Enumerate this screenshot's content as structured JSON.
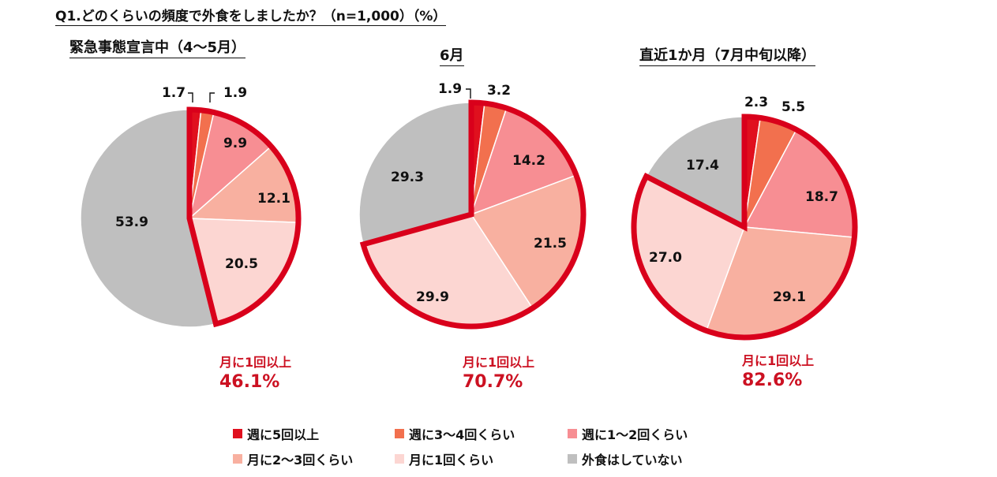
{
  "title": "Q1.どのくらいの頻度で外食をしましたか？（n=1,000）（%）",
  "colors": {
    "週に5回以上": "#e0101e",
    "週に3〜4回くらい": "#f2704e",
    "週に1〜2回くらい": "#f78e93",
    "月に2〜3回くらい": "#f8b0a0",
    "月に1回くらい": "#fcd6d2",
    "外食はしていない": "#bfbfbf",
    "highlight_outline": "#d9001b"
  },
  "legend": {
    "items": [
      "週に5回以上",
      "週に3〜4回くらい",
      "週に1〜2回くらい",
      "月に2〜3回くらい",
      "月に1回くらい",
      "外食はしていない"
    ]
  },
  "chart_data": [
    {
      "type": "pie",
      "title": "緊急事態宣言中（4〜5月）",
      "categories": [
        "週に5回以上",
        "週に3〜4回くらい",
        "週に1〜2回くらい",
        "月に2〜3回くらい",
        "月に1回くらい",
        "外食はしていない"
      ],
      "values": [
        1.7,
        1.9,
        9.9,
        12.1,
        20.5,
        53.9
      ],
      "value_labels": [
        "1.7",
        "1.9",
        "9.9",
        "12.1",
        "20.5",
        "53.9"
      ],
      "highlight_group": "月に1回以上",
      "highlight_total": "46.1%",
      "summary_label": "月に1回以上"
    },
    {
      "type": "pie",
      "title": "6月",
      "categories": [
        "週に5回以上",
        "週に3〜4回くらい",
        "週に1〜2回くらい",
        "月に2〜3回くらい",
        "月に1回くらい",
        "外食はしていない"
      ],
      "values": [
        1.9,
        3.2,
        14.2,
        21.5,
        29.9,
        29.3
      ],
      "value_labels": [
        "1.9",
        "3.2",
        "14.2",
        "21.5",
        "29.9",
        "29.3"
      ],
      "highlight_group": "月に1回以上",
      "highlight_total": "70.7%",
      "summary_label": "月に1回以上"
    },
    {
      "type": "pie",
      "title": "直近1か月（7月中旬以降）",
      "categories": [
        "週に5回以上",
        "週に3〜4回くらい",
        "週に1〜2回くらい",
        "月に2〜3回くらい",
        "月に1回くらい",
        "外食はしていない"
      ],
      "values": [
        2.3,
        5.5,
        18.7,
        29.1,
        27.0,
        17.4
      ],
      "value_labels": [
        "2.3",
        "5.5",
        "18.7",
        "29.1",
        "27.0",
        "17.4"
      ],
      "highlight_group": "月に1回以上",
      "highlight_total": "82.6%",
      "summary_label": "月に1回以上"
    }
  ]
}
